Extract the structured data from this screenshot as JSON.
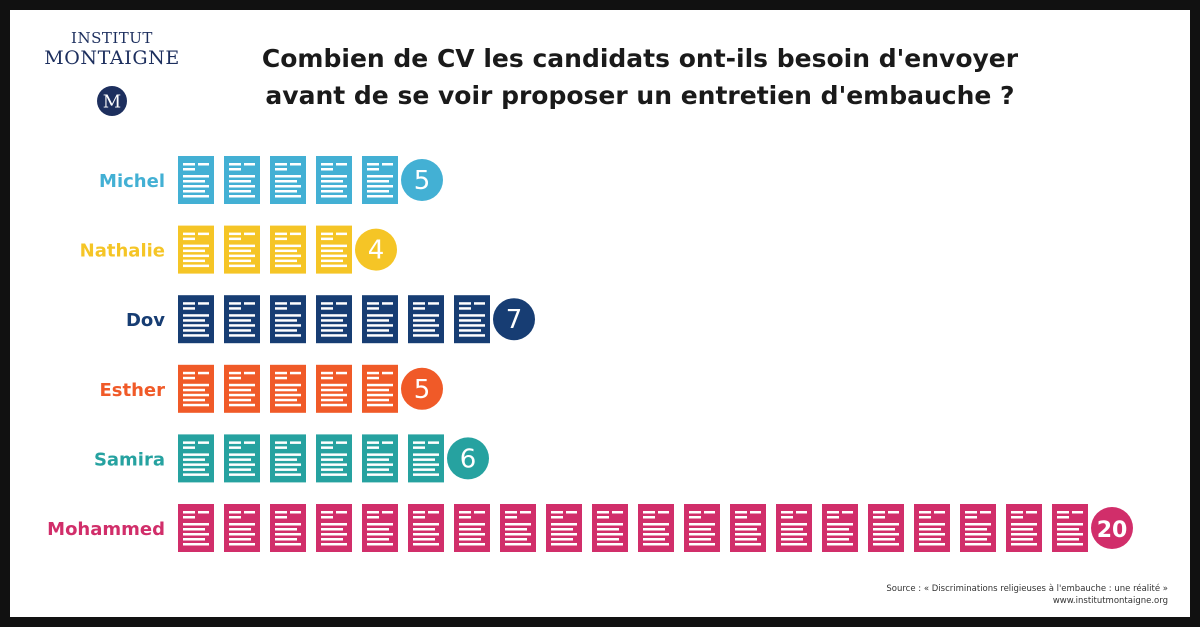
{
  "logo": {
    "line1": "INSTITUT",
    "line2": "MONTAIGNE",
    "mark_letter": "M"
  },
  "chart_data": {
    "type": "bar",
    "title": "Combien de CV les candidats ont-ils besoin d'envoyer avant de se voir proposer un entretien d'embauche ?",
    "title_line1": "Combien de CV les candidats ont-ils besoin d'envoyer",
    "title_line2": "avant de se voir proposer un entretien d'embauche ?",
    "categories": [
      "Michel",
      "Nathalie",
      "Dov",
      "Esther",
      "Samira",
      "Mohammed"
    ],
    "values": [
      5,
      4,
      7,
      5,
      6,
      20
    ],
    "colors": [
      "#43b0d4",
      "#f5c526",
      "#173d73",
      "#f05a28",
      "#26a2a0",
      "#d12e6a"
    ],
    "icon": "cv-document-icon"
  },
  "source": {
    "line1": "Source : « Discriminations religieuses à l'embauche : une réalité »",
    "line2": "www.institutmontaigne.org"
  }
}
